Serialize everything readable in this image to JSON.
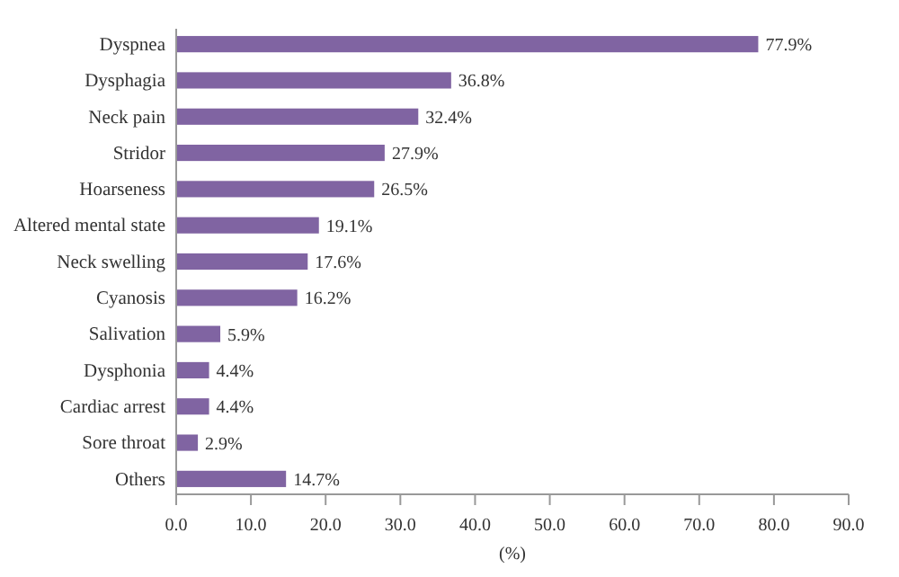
{
  "chart_data": {
    "type": "bar",
    "orientation": "horizontal",
    "categories": [
      "Dyspnea",
      "Dysphagia",
      "Neck pain",
      "Stridor",
      "Hoarseness",
      "Altered mental state",
      "Neck swelling",
      "Cyanosis",
      "Salivation",
      "Dysphonia",
      "Cardiac arrest",
      "Sore throat",
      "Others"
    ],
    "values": [
      77.9,
      36.8,
      32.4,
      27.9,
      26.5,
      19.1,
      17.6,
      16.2,
      5.9,
      4.4,
      4.4,
      2.9,
      14.7
    ],
    "value_labels": [
      "77.9%",
      "36.8%",
      "32.4%",
      "27.9%",
      "26.5%",
      "19.1%",
      "17.6%",
      "16.2%",
      "5.9%",
      "4.4%",
      "4.4%",
      "2.9%",
      "14.7%"
    ],
    "color": "#8064a2",
    "xlabel": "(%)",
    "xlim": [
      0,
      90
    ],
    "xticks": [
      {
        "value": 0,
        "label": "0.0"
      },
      {
        "value": 10,
        "label": "10.0"
      },
      {
        "value": 20,
        "label": "20.0"
      },
      {
        "value": 30,
        "label": "30.0"
      },
      {
        "value": 40,
        "label": "40.0"
      },
      {
        "value": 50,
        "label": "50.0"
      },
      {
        "value": 60,
        "label": "60.0"
      },
      {
        "value": 70,
        "label": "70.0"
      },
      {
        "value": 80,
        "label": "80.0"
      },
      {
        "value": 90,
        "label": "90.0"
      }
    ],
    "grid": false
  }
}
